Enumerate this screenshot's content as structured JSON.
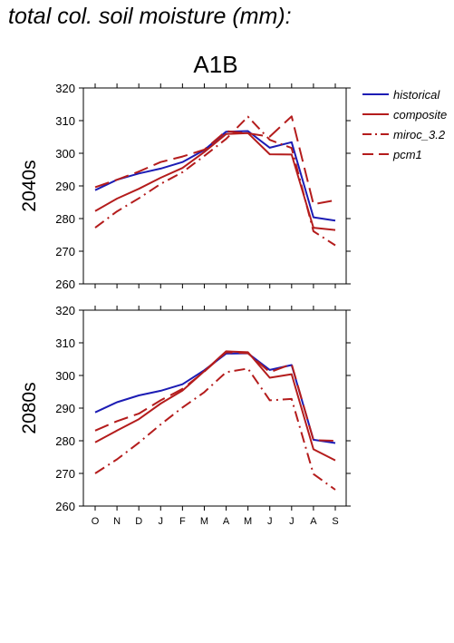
{
  "page": {
    "title": "total col. soil moisture (mm):"
  },
  "chart_data": {
    "type": "line",
    "scenario": "A1B",
    "months": [
      "O",
      "N",
      "D",
      "J",
      "F",
      "M",
      "A",
      "M",
      "J",
      "J",
      "A",
      "S"
    ],
    "ylim": [
      260,
      320
    ],
    "yticks": [
      260,
      270,
      280,
      290,
      300,
      310,
      320
    ],
    "colors": {
      "historical": "#1c1cb4",
      "models": "#b41c1c"
    },
    "legend": [
      {
        "name": "historical",
        "dash": "solid",
        "color": "#1c1cb4"
      },
      {
        "name": "composite",
        "dash": "solid",
        "color": "#b41c1c"
      },
      {
        "name": "miroc_3.2",
        "dash": "dashdot",
        "color": "#b41c1c"
      },
      {
        "name": "pcm1",
        "dash": "dashed",
        "color": "#b41c1c"
      }
    ],
    "panels": [
      {
        "label": "2040s",
        "series": [
          {
            "name": "historical",
            "values": [
              288.7,
              291.9,
              293.8,
              295.3,
              297.3,
              301.0,
              306.6,
              306.8,
              301.7,
              303.4,
              280.4,
              279.4
            ]
          },
          {
            "name": "composite",
            "values": [
              282.3,
              286.1,
              289.1,
              292.5,
              295.5,
              300.4,
              305.9,
              306.2,
              299.7,
              299.6,
              277.2,
              276.5
            ]
          },
          {
            "name": "miroc_3.2",
            "values": [
              277.2,
              282.2,
              286.2,
              290.6,
              294.2,
              299.2,
              304.4,
              311.2,
              304.1,
              301.6,
              276.1,
              271.8
            ]
          },
          {
            "name": "pcm1",
            "values": [
              289.6,
              291.9,
              294.4,
              297.3,
              299.0,
              301.1,
              306.8,
              306.1,
              305.1,
              311.3,
              284.4,
              285.6
            ]
          }
        ]
      },
      {
        "label": "2080s",
        "series": [
          {
            "name": "historical",
            "values": [
              288.7,
              291.8,
              293.9,
              295.3,
              297.3,
              301.6,
              306.7,
              306.8,
              301.7,
              303.2,
              280.3,
              279.3
            ]
          },
          {
            "name": "composite",
            "values": [
              279.5,
              283.1,
              286.6,
              291.4,
              295.4,
              301.3,
              307.4,
              307.1,
              299.3,
              300.4,
              277.4,
              274.0
            ]
          },
          {
            "name": "miroc_3.2",
            "values": [
              270.0,
              274.3,
              279.4,
              285.0,
              290.2,
              294.9,
              301.0,
              302.1,
              292.4,
              292.8,
              269.8,
              265.0
            ]
          },
          {
            "name": "pcm1",
            "values": [
              283.1,
              286.0,
              288.3,
              292.4,
              295.9,
              301.2,
              307.1,
              306.8,
              301.0,
              303.5,
              280.2,
              280.0
            ]
          }
        ]
      }
    ]
  }
}
